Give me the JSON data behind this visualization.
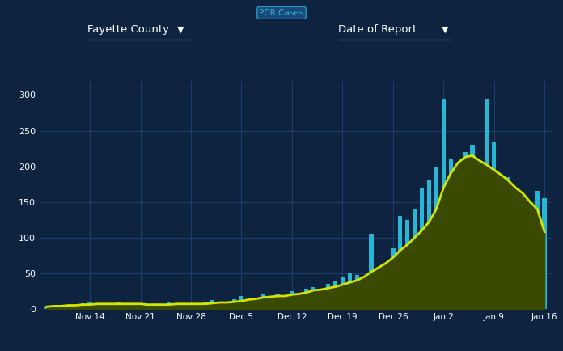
{
  "background_color": "#0d2340",
  "plot_bg_color": "#0d2340",
  "grid_color": "#1e4070",
  "bar_color": "#29b6d4",
  "ma_color": "#d4e600",
  "ma_fill_color": "#3a4a00",
  "title_top": "PCR Cases",
  "label_county": "Fayette County",
  "label_date": "Date of Report",
  "ylim": [
    0,
    320
  ],
  "yticks": [
    0,
    50,
    100,
    150,
    200,
    250,
    300
  ],
  "confirmed_cases": [
    3,
    5,
    2,
    4,
    6,
    8,
    10,
    7,
    4,
    6,
    9,
    5,
    7,
    8,
    6,
    3,
    5,
    10,
    7,
    4,
    8,
    6,
    9,
    12,
    8,
    10,
    14,
    18,
    12,
    15,
    20,
    18,
    22,
    16,
    25,
    20,
    28,
    30,
    22,
    35,
    40,
    45,
    50,
    48,
    45,
    105,
    40,
    42,
    85,
    130,
    125,
    140,
    170,
    180,
    200,
    295,
    210,
    180,
    220,
    230,
    170,
    295,
    235,
    175,
    185,
    155,
    160,
    75,
    165,
    155
  ],
  "moving_avg": [
    3,
    4,
    4,
    5,
    5,
    6,
    6,
    7,
    7,
    7,
    7,
    7,
    7,
    7,
    6,
    6,
    6,
    6,
    7,
    7,
    7,
    7,
    7,
    8,
    9,
    9,
    10,
    11,
    13,
    14,
    16,
    17,
    18,
    18,
    20,
    21,
    23,
    26,
    27,
    29,
    31,
    34,
    37,
    40,
    45,
    52,
    58,
    64,
    72,
    82,
    90,
    100,
    110,
    122,
    140,
    170,
    190,
    205,
    213,
    215,
    208,
    202,
    195,
    188,
    180,
    170,
    162,
    150,
    140,
    108
  ],
  "xtick_positions": [
    6,
    13,
    20,
    27,
    34,
    41,
    48,
    55,
    62,
    69
  ],
  "xtick_labels": [
    "Nov 14",
    "Nov 21",
    "Nov 28",
    "Dec 5",
    "Dec 12",
    "Dec 19",
    "Dec 26",
    "Jan 2",
    "Jan 9",
    "Jan 16"
  ]
}
